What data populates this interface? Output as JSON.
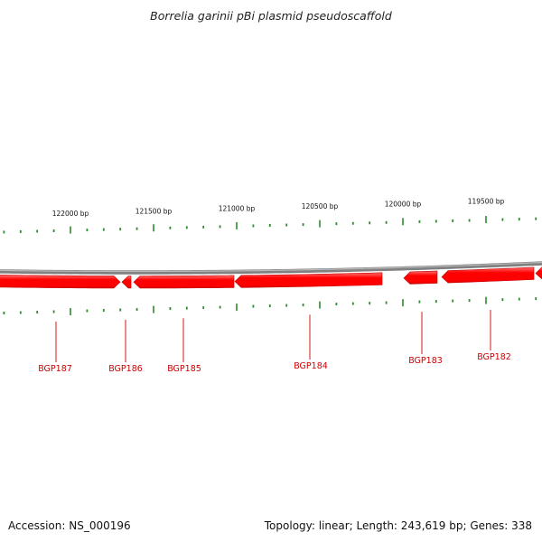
{
  "title": "Borrelia garinii pBi plasmid pseudoscaffold",
  "accession": "Accession: NS_000196",
  "summary": "Topology: linear; Length: 243,619 bp; Genes: 338",
  "colors": {
    "backbone": "#808080",
    "gene": "#ff0000",
    "gene_dark": "#c80000",
    "gene_light": "#ff7070",
    "tick": "#2e8b2e",
    "gene_label": "#cc0000",
    "leader": "#cc0000"
  },
  "ticks": [
    {
      "label": "122000 bp",
      "bp": 122000
    },
    {
      "label": "121500 bp",
      "bp": 121500
    },
    {
      "label": "121000 bp",
      "bp": 121000
    },
    {
      "label": "120500 bp",
      "bp": 120500
    },
    {
      "label": "120000 bp",
      "bp": 120000
    },
    {
      "label": "119500 bp",
      "bp": 119500
    }
  ],
  "genes": [
    {
      "name": "BGP187",
      "strand": "forward"
    },
    {
      "name": "BGP186",
      "strand": "reverse"
    },
    {
      "name": "BGP185",
      "strand": "reverse"
    },
    {
      "name": "BGP184",
      "strand": "reverse"
    },
    {
      "name": "BGP183",
      "strand": "reverse"
    },
    {
      "name": "BGP182",
      "strand": "reverse"
    }
  ]
}
